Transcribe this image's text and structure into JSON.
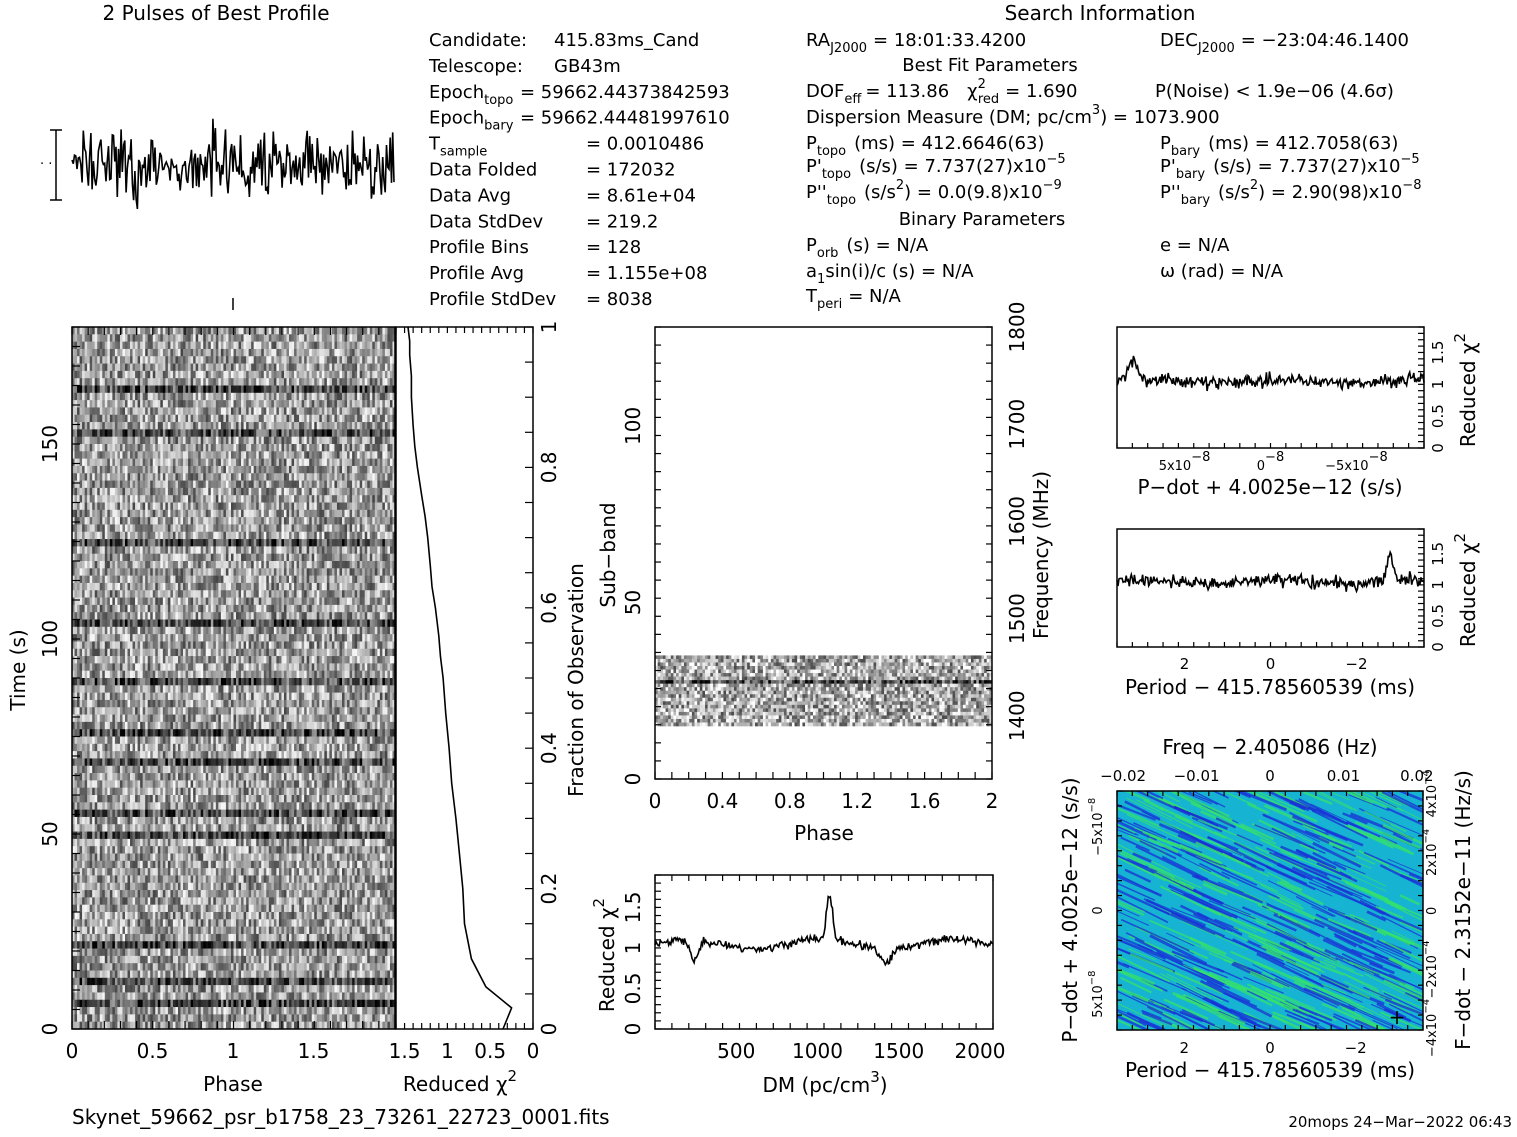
{
  "header": {
    "profile_title": "2 Pulses of Best Profile",
    "search_title": "Search Information",
    "best_fit_title": "Best Fit Parameters",
    "binary_title": "Binary Parameters"
  },
  "left_info": [
    {
      "label": "Candidate:",
      "sub": "",
      "value": "415.83ms_Cand"
    },
    {
      "label": "Telescope:",
      "sub": "",
      "value": "GB43m"
    },
    {
      "label": "Epoch",
      "sub": "topo",
      "value": "= 59662.44373842593"
    },
    {
      "label": "Epoch",
      "sub": "bary",
      "value": "= 59662.44481997610"
    },
    {
      "label": "T",
      "sub": "sample",
      "value": "=   0.0010486"
    },
    {
      "label": "Data Folded",
      "sub": "",
      "value": "=   172032"
    },
    {
      "label": "Data Avg",
      "sub": "",
      "value": "=   8.61e+04"
    },
    {
      "label": "Data StdDev",
      "sub": "",
      "value": "=   219.2"
    },
    {
      "label": "Profile Bins",
      "sub": "",
      "value": "=   128"
    },
    {
      "label": "Profile Avg",
      "sub": "",
      "value": "=   1.155e+08"
    },
    {
      "label": "Profile StdDev",
      "sub": "",
      "value": "=   8038"
    }
  ],
  "search_info": {
    "ra_label": "RA",
    "ra_sub": "J2000",
    "ra_value": "= 18:01:33.4200",
    "dec_label": "DEC",
    "dec_sub": "J2000",
    "dec_value": "= −23:04:46.1400"
  },
  "best_fit": {
    "dof_label": "DOF",
    "dof_sub": "eff",
    "dof_value": "= 113.86",
    "chi_label": "χ",
    "chi_sup": "2",
    "chi_sub": "red",
    "chi_value": "= 1.690",
    "pnoise": "P(Noise) < 1.9e−06   (4.6σ)",
    "dm_text": "Dispersion Measure (DM; pc/cm",
    "dm_sup": "3",
    "dm_value": ") = 1073.900",
    "ptopo_label": "P",
    "ptopo_sub": "topo",
    "ptopo_value": "(ms)  =  412.6646(63)",
    "pbary_label": "P",
    "pbary_sub": "bary",
    "pbary_value": "(ms)  =  412.7058(63)",
    "pdtopo_label": "P'",
    "pdtopo_sub": "topo",
    "pdtopo_value": "(s/s) =  7.737(27)x10",
    "pdtopo_exp": "−5",
    "pdbary_label": "P'",
    "pdbary_sub": "bary",
    "pdbary_value": "(s/s) =  7.737(27)x10",
    "pdbary_exp": "−5",
    "pddtopo_label": "P''",
    "pddtopo_sub": "topo",
    "pddtopo_value": "(s/s",
    "pddtopo_sup": "2",
    "pddtopo_value2": ") = 0.0(9.8)x10",
    "pddtopo_exp": "−9",
    "pddbary_label": "P''",
    "pddbary_sub": "bary",
    "pddbary_value": "(s/s",
    "pddbary_sup": "2",
    "pddbary_value2": ") =  2.90(98)x10",
    "pddbary_exp": "−8"
  },
  "binary": {
    "porb_label": "P",
    "porb_sub": "orb",
    "porb_value": "(s) = N/A",
    "a1_label": "a",
    "a1_sub": "1",
    "a1_value": "sin(i)/c (s) = N/A",
    "tperi_label": "T",
    "tperi_sub": "peri",
    "tperi_value": "= N/A",
    "e_text": "e = N/A",
    "omega_text": "ω (rad) = N/A"
  },
  "footer": {
    "filename": "Skynet_59662_psr_b1758_23_73261_22723_0001.fits",
    "stamp": "20mops 24−Mar−2022 06:43"
  },
  "colors": {
    "ink": "#000000",
    "heat_low": "#1a2fd6",
    "heat_mid": "#16b4d2",
    "heat_high": "#35e26a"
  },
  "chart_data": [
    {
      "id": "profile",
      "type": "line",
      "title": "2 Pulses of Best Profile",
      "x_range": [
        0,
        2
      ],
      "bins": 256,
      "error_bar": true
    },
    {
      "id": "time-phase",
      "type": "heatmap",
      "xlabel": "Phase",
      "ylabel": "Time (s)",
      "x_ticks": [
        "0",
        "0.5",
        "1",
        "1.5"
      ],
      "y_ticks": [
        "0",
        "50",
        "100",
        "150"
      ],
      "xlim": [
        0,
        2
      ],
      "ylim": [
        0,
        180
      ],
      "colormap": "grayscale"
    },
    {
      "id": "chi-time",
      "type": "line",
      "xlabel": "Reduced χ",
      "xlabel_sup": "2",
      "ylabel": "Fraction of Observation",
      "x_ticks": [
        "1.5",
        "1",
        "0.5",
        "0"
      ],
      "y_ticks": [
        "0",
        "0.2",
        "0.4",
        "0.6",
        "0.8",
        "1"
      ],
      "x": [
        0.35,
        0.25,
        0.55,
        0.72,
        0.8,
        0.82,
        0.86,
        0.9,
        0.95,
        0.98,
        1.02,
        1.05,
        1.08,
        1.1,
        1.14,
        1.18,
        1.2,
        1.23,
        1.26,
        1.3,
        1.35,
        1.38,
        1.4,
        1.42,
        1.42,
        1.44,
        1.44,
        1.46
      ],
      "y": [
        0.0,
        0.03,
        0.06,
        0.1,
        0.15,
        0.2,
        0.25,
        0.3,
        0.35,
        0.4,
        0.45,
        0.5,
        0.53,
        0.56,
        0.6,
        0.63,
        0.66,
        0.7,
        0.73,
        0.76,
        0.8,
        0.83,
        0.86,
        0.9,
        0.93,
        0.96,
        0.98,
        1.0
      ]
    },
    {
      "id": "subband-phase",
      "type": "heatmap",
      "xlabel": "Phase",
      "ylabel": "Sub−band",
      "right_label": "Frequency (MHz)",
      "x_ticks": [
        "0",
        "0.4",
        "0.8",
        "1.2",
        "1.6",
        "2"
      ],
      "y_ticks": [
        "0",
        "50",
        "100"
      ],
      "right_ticks": [
        "1400",
        "1500",
        "1600",
        "1700",
        "1800"
      ],
      "xlim": [
        0,
        2
      ],
      "ylim": [
        0,
        128
      ],
      "active_subbands": [
        15,
        35
      ]
    },
    {
      "id": "dm-chi",
      "type": "line",
      "xlabel": "DM (pc/cm",
      "xlabel_sup": "3",
      "xlabel_end": ")",
      "ylabel": "Reduced χ",
      "ylabel_sup": "2",
      "x_ticks": [
        "500",
        "1000",
        "1500",
        "2000"
      ],
      "y_ticks": [
        "0",
        "0.5",
        "1",
        "1.5"
      ],
      "xlim": [
        0,
        2080
      ],
      "ylim": [
        0,
        1.9
      ],
      "peak_dm": 1073.9,
      "peak_value": 1.65
    },
    {
      "id": "pdot-chi",
      "type": "line",
      "xlabel": "P−dot + 4.0025e−12 (s/s)",
      "ylabel": "Reduced χ",
      "ylabel_sup": "2",
      "x_ticks": [
        "5x10",
        "0",
        "−5x10"
      ],
      "x_tick_exp": "−8",
      "y_ticks": [
        "0",
        "0.5",
        "1",
        "1.5"
      ],
      "ylim": [
        0,
        1.9
      ]
    },
    {
      "id": "period-chi",
      "type": "line",
      "xlabel": "Period − 415.78560539 (ms)",
      "ylabel": "Reduced χ",
      "ylabel_sup": "2",
      "x_ticks": [
        "2",
        "0",
        "−2"
      ],
      "y_ticks": [
        "0",
        "0.5",
        "1",
        "1.5"
      ],
      "ylim": [
        0,
        1.9
      ]
    },
    {
      "id": "p-pdot",
      "type": "heatmap",
      "xlabel": "Period − 415.78560539 (ms)",
      "top_label": "Freq − 2.405086 (Hz)",
      "ylabel": "P−dot + 4.0025e−12 (s/s)",
      "right_label": "F−dot − 2.3152e−11 (Hz/s)",
      "x_ticks": [
        "2",
        "0",
        "−2"
      ],
      "top_ticks": [
        "−0.02",
        "−0.01",
        "0",
        "0.01",
        "0.02"
      ],
      "y_ticks": [
        "5x10",
        "0",
        "−5x10"
      ],
      "y_tick_exp": "−8",
      "right_ticks": [
        "−4x10",
        "−2x10",
        "0",
        "2x10",
        "4x10"
      ],
      "right_tick_exp": "−4",
      "colormap": "blue-cyan-green"
    }
  ]
}
